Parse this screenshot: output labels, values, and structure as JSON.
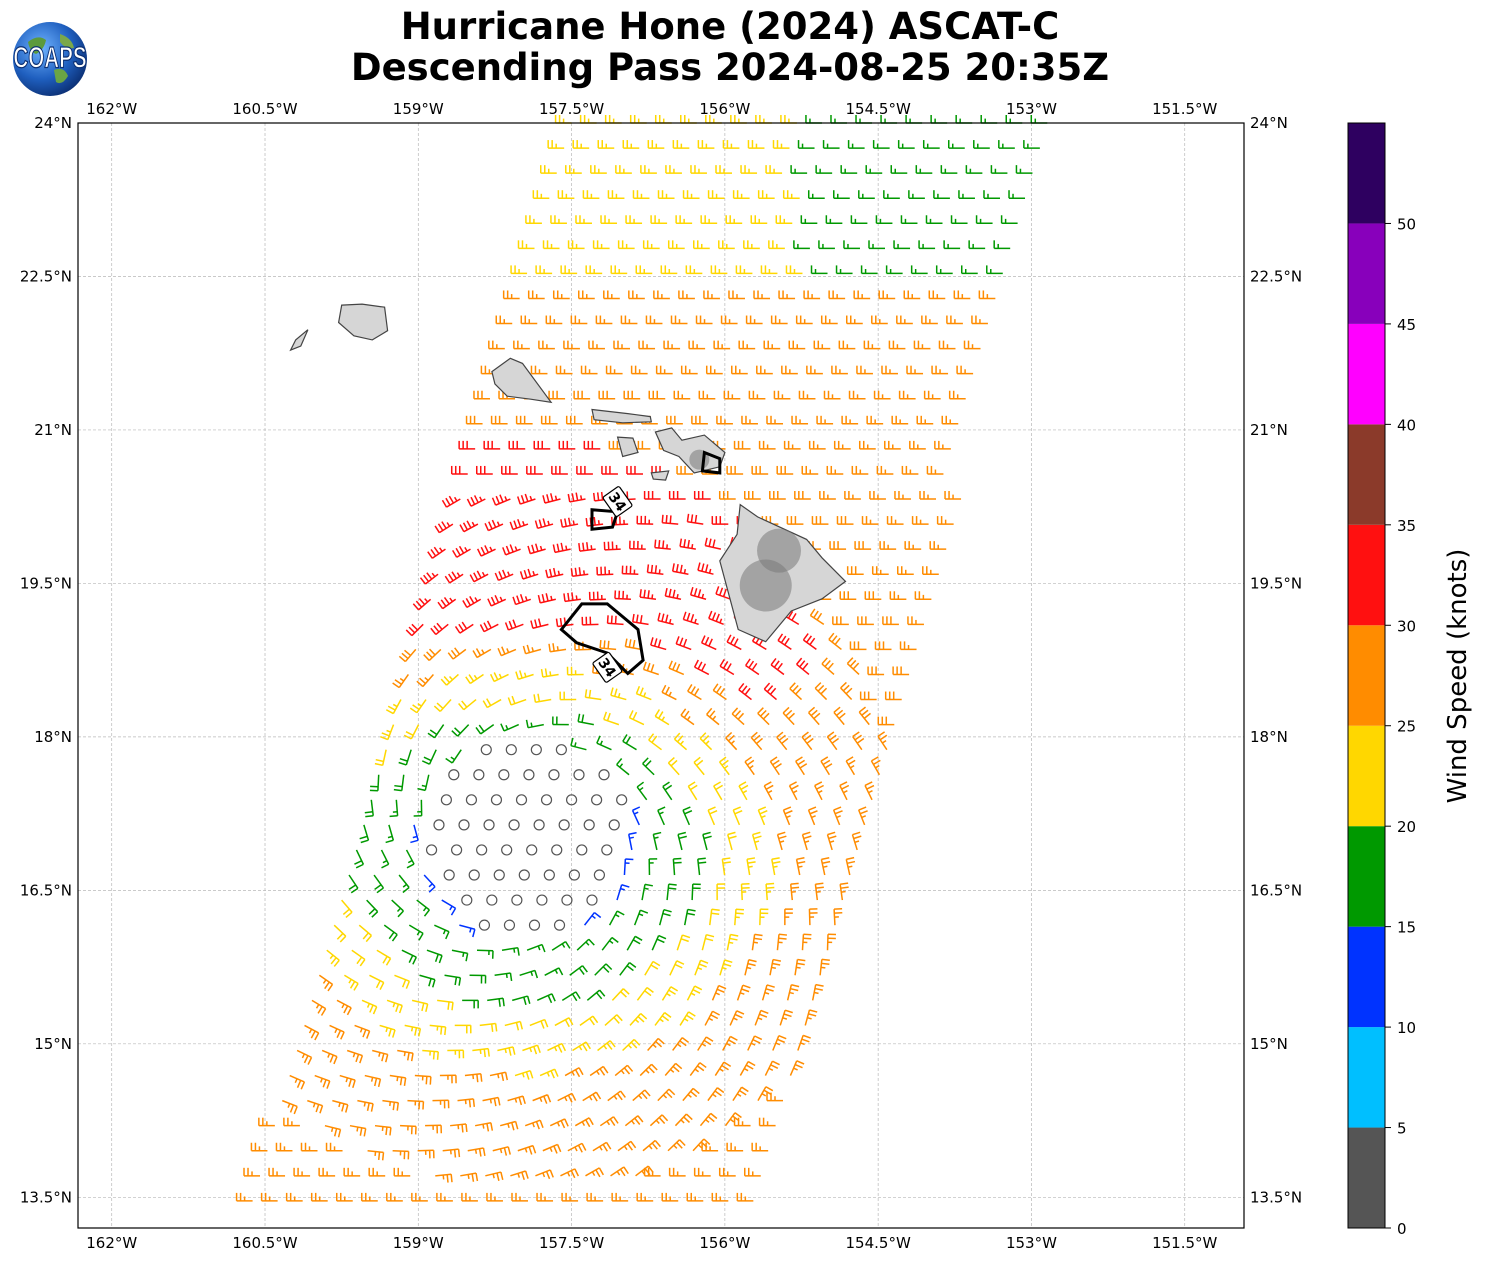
{
  "title": {
    "line1": "Hurricane Hone (2024) ASCAT-C",
    "line2": "Descending Pass 2024-08-25 20:35Z"
  },
  "logo": {
    "text": "COAPS",
    "icon": "globe-icon"
  },
  "map": {
    "lon_range": [
      -162.33,
      -150.92
    ],
    "lat_range": [
      13.2,
      24.0
    ],
    "grid": true,
    "lon_ticks": [
      {
        "value": -162.0,
        "label": "162°W"
      },
      {
        "value": -160.5,
        "label": "160.5°W"
      },
      {
        "value": -159.0,
        "label": "159°W"
      },
      {
        "value": -157.5,
        "label": "157.5°W"
      },
      {
        "value": -156.0,
        "label": "156°W"
      },
      {
        "value": -154.5,
        "label": "154.5°W"
      },
      {
        "value": -153.0,
        "label": "153°W"
      },
      {
        "value": -151.5,
        "label": "151.5°W"
      }
    ],
    "lat_ticks": [
      {
        "value": 24.0,
        "label": "24°N"
      },
      {
        "value": 22.5,
        "label": "22.5°N"
      },
      {
        "value": 21.0,
        "label": "21°N"
      },
      {
        "value": 19.5,
        "label": "19.5°N"
      },
      {
        "value": 18.0,
        "label": "18°N"
      },
      {
        "value": 16.5,
        "label": "16.5°N"
      },
      {
        "value": 15.0,
        "label": "15°N"
      },
      {
        "value": 13.5,
        "label": "13.5°N"
      }
    ],
    "storm_center": {
      "lon": -157.95,
      "lat": 17.05
    },
    "contour_label": "34",
    "contour_color": "#000000",
    "land_color": "#9a9a9a",
    "coast_color": "#444444"
  },
  "colorbar": {
    "label": "Wind Speed (knots)",
    "bounds": [
      0,
      5,
      10,
      15,
      20,
      25,
      30,
      35,
      40,
      45,
      50,
      55
    ],
    "tick_labels": [
      "0",
      "5",
      "10",
      "15",
      "20",
      "25",
      "30",
      "35",
      "40",
      "45",
      "50"
    ],
    "colors": [
      "#555555",
      "#00bfff",
      "#0033ff",
      "#009900",
      "#ffd700",
      "#ff8c00",
      "#ff1010",
      "#8b3a2a",
      "#ff00ff",
      "#8800bb",
      "#2e0060"
    ]
  }
}
